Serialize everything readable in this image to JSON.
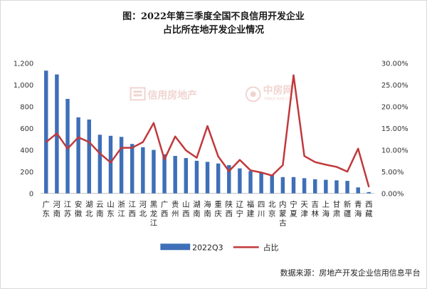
{
  "chart_data": {
    "type": "bar",
    "title": [
      "图：2022年第三季度全国不良信用开发企业",
      "占比所在地开发企业情况"
    ],
    "categories": [
      "广东",
      "河南",
      "江苏",
      "安徽",
      "湖北",
      "云南",
      "山东",
      "浙江",
      "江西",
      "河北",
      "黑龙江",
      "广西",
      "贵州",
      "山西",
      "湖南",
      "海南",
      "重庆",
      "陕西",
      "辽宁",
      "福建",
      "四川",
      "北京",
      "内蒙古",
      "宁夏",
      "天津",
      "吉林",
      "上海",
      "甘肃",
      "新疆",
      "青海",
      "西藏"
    ],
    "series": [
      {
        "name": "2022Q3",
        "type": "bar",
        "axis": "left",
        "color": "#3e6fb8",
        "values": [
          1130,
          1095,
          870,
          700,
          680,
          540,
          530,
          520,
          455,
          425,
          400,
          360,
          345,
          325,
          300,
          290,
          275,
          260,
          230,
          205,
          190,
          175,
          150,
          150,
          140,
          130,
          125,
          120,
          115,
          55,
          12
        ]
      },
      {
        "name": "占比",
        "type": "line",
        "axis": "right",
        "color": "#c0393b",
        "values": [
          11.8,
          13.8,
          10.3,
          12.9,
          11.8,
          9.2,
          7.1,
          10.5,
          10.5,
          11.8,
          16.2,
          7.8,
          13.1,
          9.9,
          8.2,
          15.5,
          8.5,
          5.1,
          7.7,
          5.3,
          4.8,
          4.1,
          6.5,
          27.2,
          8.6,
          7.2,
          6.6,
          6.1,
          5.0,
          10.3,
          1.5
        ]
      }
    ],
    "y_left": {
      "min": 0,
      "max": 1200,
      "ticks": [
        "0",
        "200",
        "400",
        "600",
        "800",
        "1,000",
        "1,200"
      ]
    },
    "y_right": {
      "min": 0,
      "max": 30,
      "ticks": [
        "0.00%",
        "5.00%",
        "10.00%",
        "15.00%",
        "20.00%",
        "25.00%",
        "30.00%"
      ]
    },
    "legend": {
      "placement": "bottom",
      "items": [
        "2022Q3",
        "占比"
      ]
    }
  },
  "watermark": {
    "text": "信用房地产",
    "brand": "中房网",
    "brand_sub": "FANGCHAN.COM"
  },
  "source": "数据来源：房地产开发企业信用信息平台",
  "colors": {
    "bar": "#3e6fb8",
    "line": "#c0393b",
    "watermark": "#f0d4d0"
  }
}
